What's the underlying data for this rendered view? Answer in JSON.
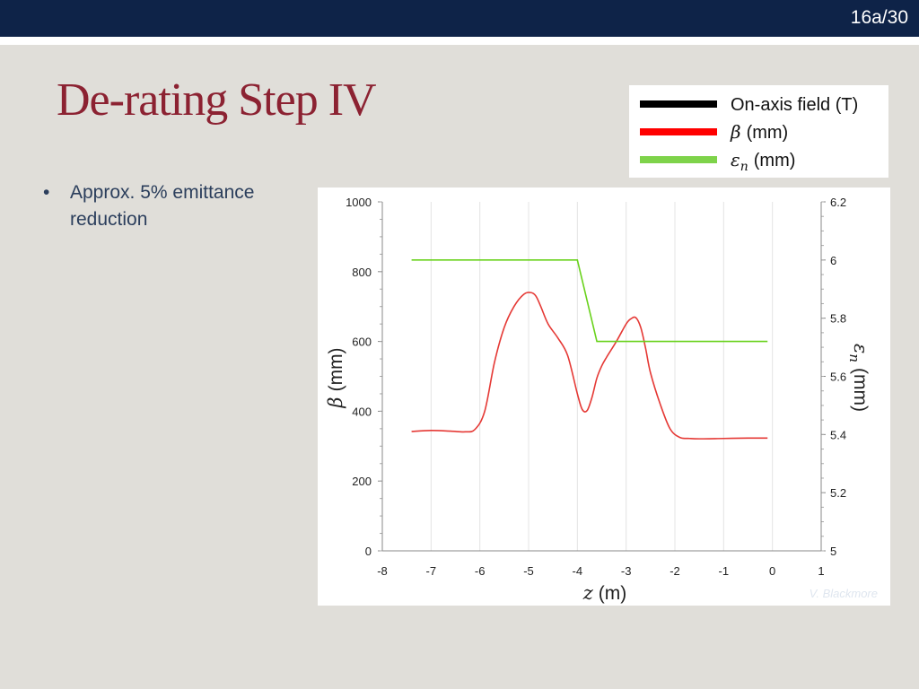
{
  "header": {
    "slide_number": "16a/30",
    "bar_color": "#0e2348"
  },
  "title": "De-rating Step IV",
  "bullets": [
    {
      "marker": "•",
      "text": "Approx. 5% emittance reduction"
    }
  ],
  "credit": "V. Blackmore",
  "legend": {
    "items": [
      {
        "label": "On-axis field (T)",
        "color": "#000000"
      },
      {
        "symbol": "β",
        "label": "(mm)",
        "color": "#ff0000"
      },
      {
        "symbol": "ε",
        "sub": "n",
        "label": "(mm)",
        "color": "#7ed34a"
      }
    ]
  },
  "chart_data": {
    "type": "line",
    "xlabel": {
      "symbol": "z",
      "unit": "(m)"
    },
    "ylabel_left": {
      "symbol": "β",
      "unit": "(mm)"
    },
    "ylabel_right": {
      "symbol": "ε",
      "sub": "n",
      "unit": "(mm)"
    },
    "xlim": [
      -8,
      1
    ],
    "xticks": [
      "-8",
      "-7",
      "-6",
      "-5",
      "-4",
      "-3",
      "-2",
      "-1",
      "0",
      "1"
    ],
    "ylim_left": [
      0,
      1000
    ],
    "yticks_left": [
      "0",
      "200",
      "400",
      "600",
      "800",
      "1000"
    ],
    "ylim_right": [
      5,
      6.2
    ],
    "yticks_right": [
      "5",
      "5.2",
      "5.4",
      "5.6",
      "5.8",
      "6",
      "6.2"
    ],
    "grid": true,
    "series": [
      {
        "name": "On-axis field (T)",
        "axis": "left",
        "color": "#000000",
        "x": [],
        "y": []
      },
      {
        "name": "β (mm)",
        "axis": "left",
        "color": "#e53935",
        "x": [
          -7.4,
          -7.0,
          -6.6,
          -6.3,
          -6.1,
          -5.9,
          -5.7,
          -5.5,
          -5.3,
          -5.1,
          -4.95,
          -4.85,
          -4.75,
          -4.6,
          -4.4,
          -4.2,
          -4.0,
          -3.9,
          -3.8,
          -3.7,
          -3.6,
          -3.5,
          -3.4,
          -3.2,
          -3.0,
          -2.9,
          -2.8,
          -2.7,
          -2.6,
          -2.5,
          -2.3,
          -2.1,
          -1.9,
          -1.7,
          -1.5,
          -1.0,
          -0.5,
          -0.1
        ],
        "y": [
          342,
          345,
          343,
          341,
          348,
          400,
          540,
          640,
          700,
          735,
          740,
          730,
          700,
          650,
          610,
          560,
          450,
          405,
          402,
          440,
          495,
          530,
          555,
          600,
          650,
          665,
          668,
          640,
          580,
          510,
          420,
          350,
          325,
          322,
          321,
          322,
          323,
          323
        ]
      },
      {
        "name": "εn (mm)",
        "axis": "right",
        "color": "#69d21c",
        "x": [
          -7.4,
          -4.0,
          -3.6,
          -0.1
        ],
        "y": [
          6.0,
          6.0,
          5.72,
          5.72
        ]
      }
    ]
  }
}
